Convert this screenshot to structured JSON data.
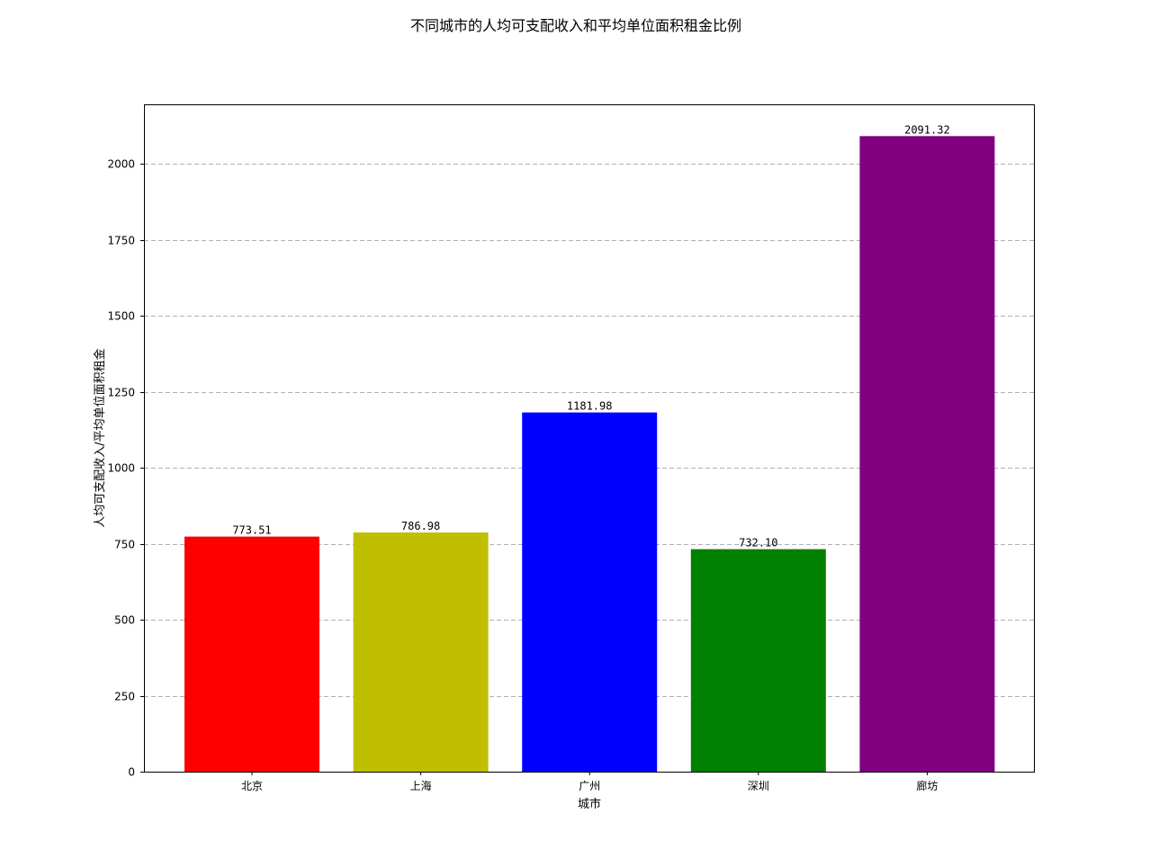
{
  "chart_data": {
    "type": "bar",
    "title": "不同城市的人均可支配收入和平均单位面积租金比例",
    "xlabel": "城市",
    "ylabel": "人均可支配收入/平均单位面积租金",
    "categories": [
      "北京",
      "上海",
      "广州",
      "深圳",
      "廊坊"
    ],
    "values": [
      773.51,
      786.98,
      1181.98,
      732.1,
      2091.32
    ],
    "value_labels": [
      "773.51",
      "786.98",
      "1181.98",
      "732.10",
      "2091.32"
    ],
    "colors": [
      "#ff0000",
      "#bfbf00",
      "#0000ff",
      "#008000",
      "#800080"
    ],
    "yticks": [
      0,
      250,
      500,
      750,
      1000,
      1250,
      1500,
      1750,
      2000
    ],
    "ylim": [
      0,
      2195.9
    ],
    "grid": true
  }
}
